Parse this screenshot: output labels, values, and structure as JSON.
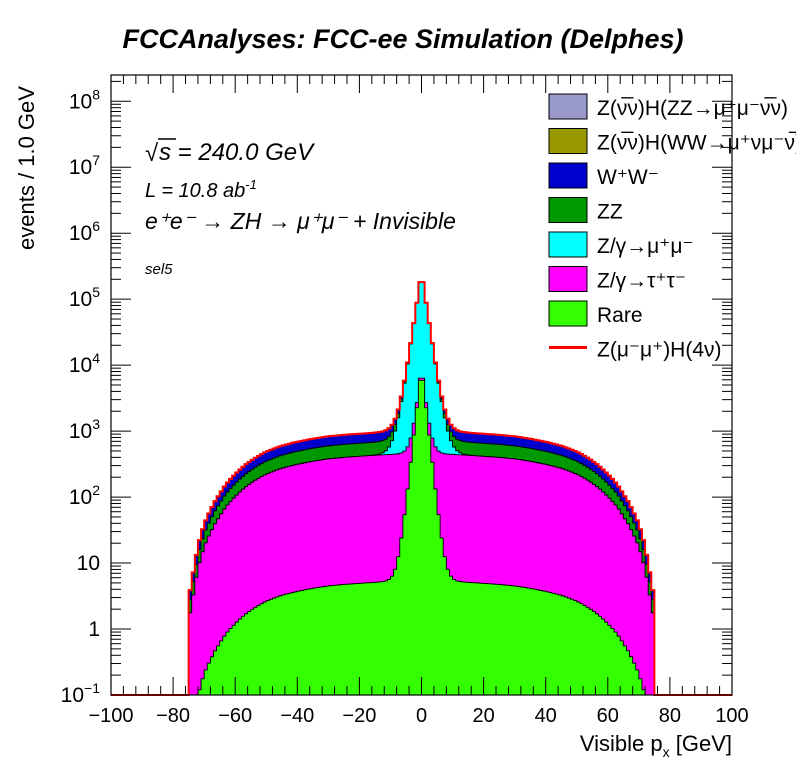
{
  "chart_data": {
    "type": "area",
    "stacked": true,
    "title": "FCCAnalyses: FCC-ee Simulation (Delphes)",
    "xlabel_main": "Visible p",
    "xlabel_sub": "x",
    "xlabel_unit": " [GeV]",
    "ylabel": "events / 1.0 GeV",
    "xlim": [
      -100,
      100
    ],
    "ylim": [
      0.1,
      250000000
    ],
    "yscale": "log",
    "grid": false,
    "legend_placement": "top-right",
    "x_ticks": [
      "−100",
      "−80",
      "−60",
      "−40",
      "−20",
      "0",
      "20",
      "40",
      "60",
      "80",
      "100"
    ],
    "annotations": {
      "sqrt_s_symbol": "√",
      "sqrt_s": "s = 240.0 GeV",
      "lumi": "L = 10.8 ab",
      "lumi_exp": "-1",
      "process": "e⁺e⁻ → ZH → μ⁺μ⁻ + Invisible",
      "selection": "sel5"
    },
    "x_profile": [
      [
        -100,
        0
      ],
      [
        -75.5,
        0
      ],
      [
        -75,
        1
      ],
      [
        -73,
        4
      ],
      [
        -71,
        12
      ],
      [
        -68,
        28
      ],
      [
        -65,
        50
      ],
      [
        -60,
        100
      ],
      [
        -55,
        160
      ],
      [
        -50,
        220
      ],
      [
        -45,
        270
      ],
      [
        -40,
        310
      ],
      [
        -35,
        345
      ],
      [
        -30,
        375
      ],
      [
        -25,
        395
      ],
      [
        -20,
        410
      ],
      [
        -15,
        425
      ],
      [
        -10,
        438
      ],
      [
        -5,
        445
      ],
      [
        0,
        450
      ],
      [
        5,
        445
      ],
      [
        10,
        438
      ],
      [
        15,
        425
      ],
      [
        20,
        410
      ],
      [
        25,
        395
      ],
      [
        30,
        375
      ],
      [
        35,
        345
      ],
      [
        40,
        310
      ],
      [
        45,
        270
      ],
      [
        50,
        220
      ],
      [
        55,
        160
      ],
      [
        60,
        100
      ],
      [
        65,
        50
      ],
      [
        68,
        28
      ],
      [
        71,
        12
      ],
      [
        73,
        4
      ],
      [
        75,
        1
      ],
      [
        75.5,
        0
      ],
      [
        100,
        0
      ]
    ],
    "series": [
      {
        "name": "Z(ν̅ν)H(ZZ→μ⁺μ⁻ν̅ν)",
        "color": "#9999cc",
        "scale": 0.0005,
        "x_range": [
          -45,
          55
        ]
      },
      {
        "name": "Z(ν̅ν)H(WW→μ⁺νμ⁻ν̅)",
        "color": "#999900",
        "scale": 0.0,
        "x_range": [
          -75,
          75
        ]
      },
      {
        "name": "W⁺W⁻",
        "color": "#0000cc",
        "scale": 0.62,
        "x_range": [
          -75,
          75
        ]
      },
      {
        "name": "ZZ",
        "color": "#009900",
        "scale": 0.58,
        "x_range": [
          -75,
          75
        ]
      },
      {
        "name": "Z/γ→μ⁺μ⁻",
        "color": "#00ffff",
        "scale": 0.0,
        "x_range": [
          -75,
          75
        ],
        "peak": {
          "center": 0,
          "width": 1.6,
          "height": 250000
        }
      },
      {
        "name": "Z/γ→τ⁺τ⁻",
        "color": "#ff00ff",
        "scale": 1.0,
        "x_range": [
          -75,
          75
        ]
      },
      {
        "name": "Rare",
        "color": "#33ff00",
        "scale": 0.012,
        "x_range": [
          -75,
          75
        ],
        "peak": {
          "center": 0,
          "width": 1.2,
          "height": 9500
        }
      },
      {
        "name": "Z(μ⁻μ⁺)H(4ν)",
        "color": "#ff0000",
        "style": "line",
        "scale": 0.01,
        "x_range": [
          -75,
          75
        ]
      }
    ]
  }
}
